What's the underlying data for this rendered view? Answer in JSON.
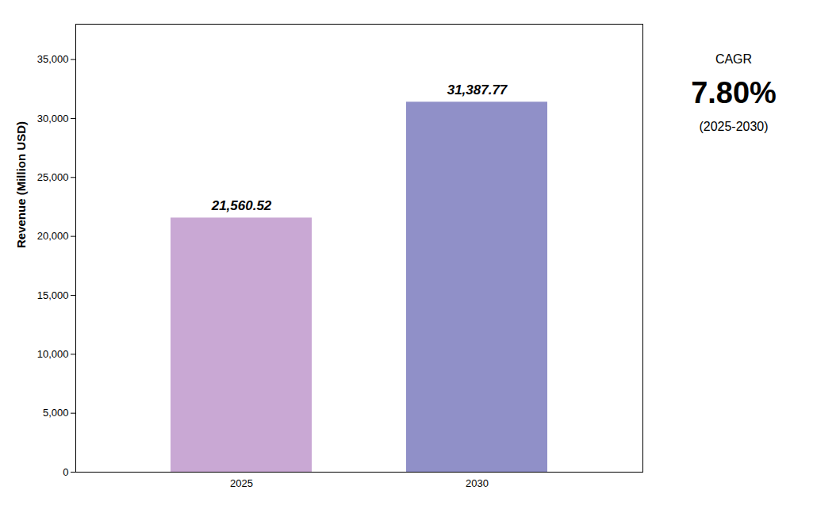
{
  "chart_data": {
    "type": "bar",
    "categories": [
      "2025",
      "2030"
    ],
    "values": [
      21560.52,
      31387.77
    ],
    "value_labels": [
      "21,560.52",
      "31,387.77"
    ],
    "data_labels": true,
    "colors": [
      "#C9A8D4",
      "#9090C8"
    ],
    "ylabel": "Revenue (Million USD)",
    "ylim": [
      0,
      38000
    ],
    "yticks": [
      0,
      {
        "value": 5000,
        "label": "5,000"
      },
      {
        "value": 10000,
        "label": "10,000"
      },
      {
        "value": 15000,
        "label": "15,000"
      },
      {
        "value": 20000,
        "label": "20,000"
      },
      {
        "value": 25000,
        "label": "25,000"
      },
      {
        "value": 30000,
        "label": "30,000"
      },
      {
        "value": 35000,
        "label": "35,000"
      }
    ],
    "grid": false,
    "annotations": [
      "CAGR",
      "7.80%",
      "(2025-2030)"
    ]
  }
}
